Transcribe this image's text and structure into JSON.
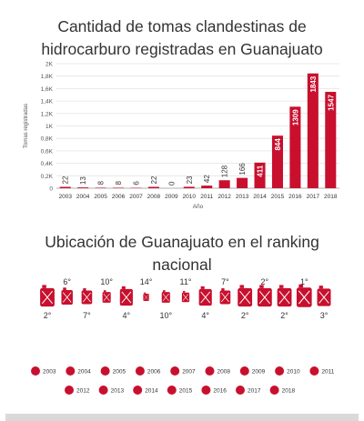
{
  "colors": {
    "accent": "#c8102e",
    "grid": "#e3e3e3",
    "text": "#333333"
  },
  "chart_data": {
    "type": "bar",
    "title": "Cantidad de tomas clandestinas de hidrocarburo registradas en Guanajuato",
    "title_lines": [
      "Cantidad de tomas clandestinas de",
      "hidrocarburo registradas en Guanajuato"
    ],
    "xlabel": "Año",
    "ylabel": "Tomas registradas",
    "categories": [
      "2003",
      "2004",
      "2005",
      "2006",
      "2007",
      "2008",
      "2009",
      "2010",
      "2011",
      "2012",
      "2013",
      "2014",
      "2015",
      "2016",
      "2017",
      "2018"
    ],
    "values": [
      22,
      13,
      8,
      8,
      6,
      22,
      0,
      23,
      42,
      128,
      166,
      411,
      844,
      1309,
      1843,
      1547
    ],
    "value_labels": [
      "22",
      "13",
      "8",
      "8",
      "6",
      "22",
      "0",
      "23",
      "42",
      "128",
      "166",
      "411",
      "844",
      "1309",
      "1843",
      "1547"
    ],
    "yticks": [
      "0",
      "0,2K",
      "0,4K",
      "0,6K",
      "0,8K",
      "1K",
      "1,2K",
      "1,4K",
      "1,6K",
      "1,8K",
      "2K"
    ],
    "ylim": [
      0,
      2000
    ],
    "grid": true,
    "color": "#c8102e"
  },
  "ranking": {
    "title_lines": [
      "Ubicación de Guanajuato en el ranking",
      "nacional"
    ],
    "positions": [
      "2°",
      "6°",
      "7°",
      "10°",
      "4°",
      "14°",
      "10°",
      "11°",
      "4°",
      "7°",
      "2°",
      "2°",
      "2°",
      "1°",
      "3°"
    ],
    "legend_years": [
      "2003",
      "2004",
      "2005",
      "2006",
      "2007",
      "2008",
      "2009",
      "2010",
      "2011",
      "2012",
      "2013",
      "2014",
      "2015",
      "2016",
      "2017",
      "2018"
    ]
  }
}
